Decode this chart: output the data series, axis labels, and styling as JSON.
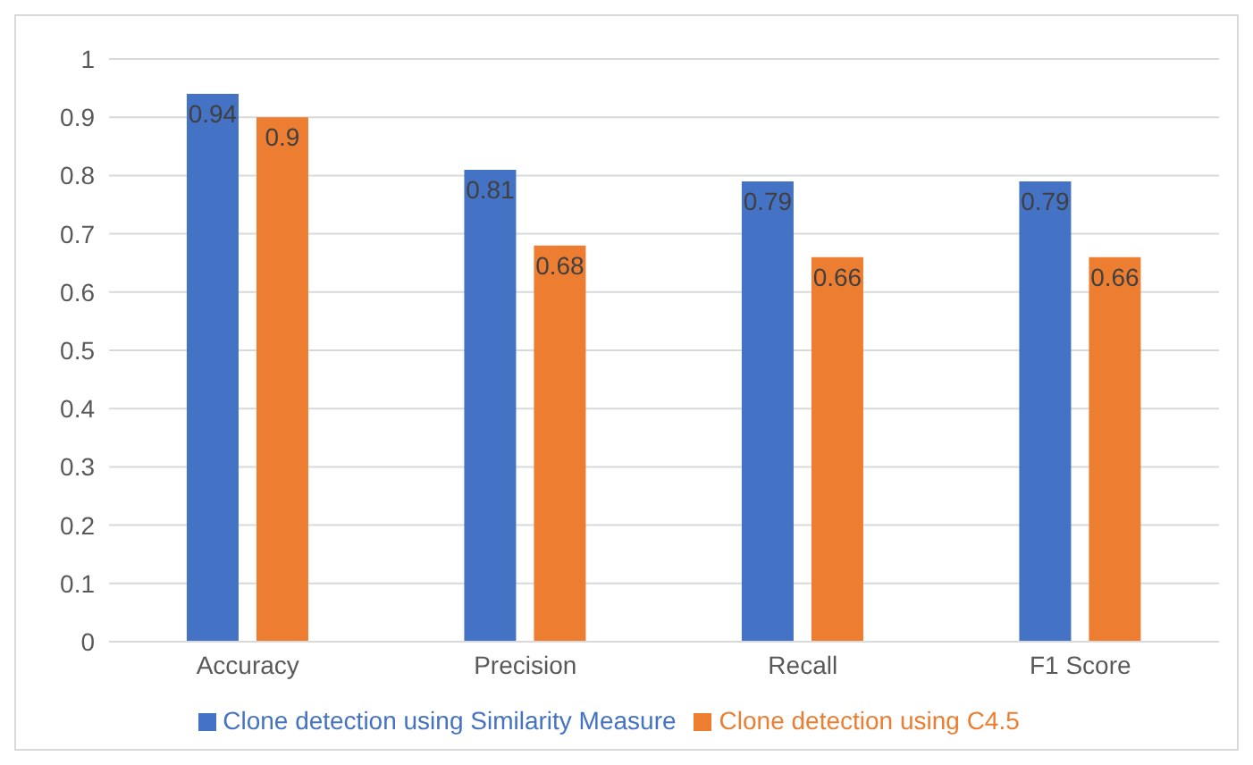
{
  "chart_data": {
    "type": "bar",
    "categories": [
      "Accuracy",
      "Precision",
      "Recall",
      "F1 Score"
    ],
    "series": [
      {
        "name": "Clone detection using Similarity Measure",
        "color": "#4472c4",
        "values": [
          0.94,
          0.81,
          0.79,
          0.79
        ]
      },
      {
        "name": "Clone detection using C4.5",
        "color": "#ed7d31",
        "values": [
          0.9,
          0.68,
          0.66,
          0.66
        ]
      }
    ],
    "ylim": [
      0,
      1
    ],
    "yticks": [
      0,
      0.1,
      0.2,
      0.3,
      0.4,
      0.5,
      0.6,
      0.7,
      0.8,
      0.9,
      1
    ],
    "grid": "y",
    "legend": "bottom",
    "data_labels": true
  }
}
